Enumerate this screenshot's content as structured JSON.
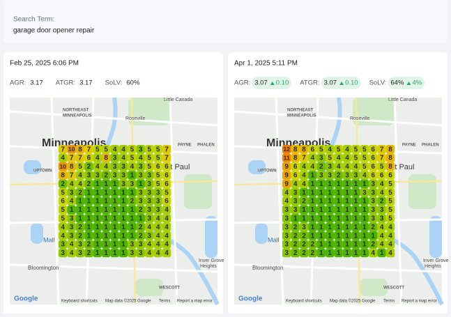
{
  "search": {
    "label": "Search Term:",
    "value": "garage door opener repair"
  },
  "panels": [
    {
      "date": "Feb 25, 2025 6:06 PM",
      "metrics": [
        {
          "label": "AGR:",
          "value": "3.17"
        },
        {
          "label": "ATGR:",
          "value": "3.17"
        },
        {
          "label": "SoLV:",
          "value": "60%"
        }
      ],
      "map_labels": [
        "Little Canada",
        "NORTHEAST",
        "MINNEAPOLIS",
        "Roseville",
        "PAYNE",
        "PHALEN",
        "Minneapolis",
        "UPTOWN",
        "St Paul",
        "Mall",
        "Bloomington",
        "Inver Grove",
        "Heights",
        "WESCOTT"
      ],
      "map_footer": [
        "Google",
        "Keyboard shortcuts",
        "Map data ©2025 Google",
        "Terms",
        "Report a map error"
      ],
      "grid": [
        [
          7,
          10,
          8,
          7,
          5,
          5,
          4,
          4,
          5,
          3,
          5,
          5,
          7
        ],
        [
          4,
          7,
          7,
          6,
          4,
          8,
          3,
          4,
          5,
          4,
          5,
          5,
          7
        ],
        [
          10,
          8,
          5,
          2,
          4,
          4,
          3,
          3,
          4,
          3,
          5,
          6,
          6
        ],
        [
          8,
          7,
          4,
          3,
          3,
          2,
          3,
          3,
          1,
          3,
          3,
          5,
          6
        ],
        [
          2,
          4,
          4,
          2,
          1,
          1,
          1,
          3,
          3,
          1,
          3,
          5,
          6
        ],
        [
          5,
          3,
          2,
          1,
          1,
          1,
          1,
          1,
          1,
          3,
          3,
          3,
          5
        ],
        [
          6,
          4,
          1,
          1,
          1,
          1,
          1,
          1,
          2,
          3,
          3,
          3,
          6
        ],
        [
          5,
          1,
          1,
          1,
          1,
          1,
          1,
          1,
          1,
          2,
          3,
          3,
          4
        ],
        [
          5,
          3,
          1,
          1,
          1,
          1,
          1,
          1,
          1,
          1,
          3,
          4,
          4
        ],
        [
          4,
          3,
          2,
          1,
          1,
          1,
          1,
          1,
          1,
          2,
          4,
          4,
          4
        ],
        [
          4,
          3,
          2,
          1,
          1,
          1,
          1,
          1,
          1,
          2,
          3,
          4,
          4
        ],
        [
          3,
          4,
          3,
          2,
          1,
          1,
          1,
          1,
          3,
          3,
          4,
          4,
          4
        ],
        [
          3,
          4,
          3,
          2,
          1,
          1,
          1,
          1,
          3,
          3,
          4,
          4,
          4
        ]
      ]
    },
    {
      "date": "Apr 1, 2025 5:11 PM",
      "metrics": [
        {
          "label": "AGR:",
          "value": "3.07",
          "change": "0.10"
        },
        {
          "label": "ATGR:",
          "value": "3.07",
          "change": "0.10"
        },
        {
          "label": "SoLV:",
          "value": "64%",
          "change": "4%"
        }
      ],
      "map_labels": [
        "Little Canada",
        "NORTHEAST",
        "MINNEAPOLIS",
        "Roseville",
        "PAYNE",
        "PHALEN",
        "Minneapolis",
        "UPTOWN",
        "St Paul",
        "Mall",
        "Bloomington",
        "Inver Grove",
        "Heights",
        "WESCOTT"
      ],
      "map_footer": [
        "Google",
        "Keyboard shortcuts",
        "Map data ©2025 Google",
        "Terms",
        "Report a map error"
      ],
      "grid": [
        [
          12,
          8,
          8,
          6,
          5,
          4,
          5,
          4,
          5,
          5,
          6,
          7,
          8
        ],
        [
          11,
          8,
          7,
          4,
          3,
          5,
          4,
          4,
          5,
          5,
          6,
          7,
          8
        ],
        [
          9,
          6,
          4,
          4,
          2,
          3,
          4,
          4,
          4,
          5,
          6,
          5,
          8
        ],
        [
          9,
          6,
          4,
          1,
          3,
          3,
          2,
          3,
          3,
          4,
          6,
          6,
          6
        ],
        [
          9,
          4,
          4,
          1,
          1,
          1,
          1,
          1,
          1,
          1,
          3,
          4,
          5
        ],
        [
          4,
          3,
          1,
          1,
          1,
          1,
          1,
          1,
          1,
          3,
          3,
          4,
          5
        ],
        [
          4,
          3,
          2,
          1,
          1,
          1,
          1,
          1,
          1,
          1,
          3,
          2,
          5
        ],
        [
          3,
          3,
          1,
          1,
          1,
          1,
          1,
          1,
          1,
          1,
          3,
          3,
          5
        ],
        [
          3,
          1,
          1,
          1,
          1,
          1,
          1,
          1,
          1,
          1,
          3,
          3,
          5
        ],
        [
          3,
          2,
          3,
          1,
          1,
          1,
          1,
          1,
          1,
          1,
          2,
          4,
          4
        ],
        [
          3,
          2,
          2,
          1,
          1,
          1,
          1,
          1,
          1,
          1,
          1,
          4,
          4
        ],
        [
          3,
          2,
          2,
          2,
          1,
          1,
          1,
          1,
          1,
          1,
          2,
          4,
          4
        ],
        [
          3,
          2,
          2,
          2,
          1,
          1,
          1,
          1,
          1,
          1,
          4,
          1,
          4
        ]
      ]
    }
  ]
}
